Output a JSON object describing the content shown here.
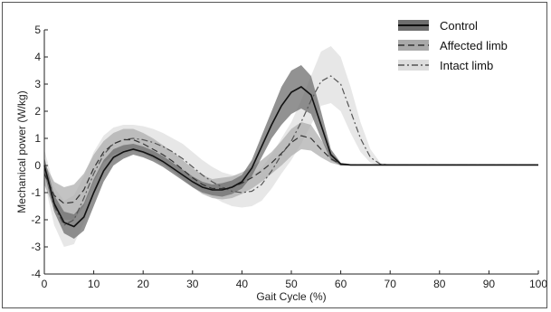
{
  "chart_data": {
    "type": "line",
    "title": "",
    "xlabel": "Gait Cycle (%)",
    "ylabel": "Mechanical power (W/kg)",
    "xlim": [
      0,
      100
    ],
    "ylim": [
      -4,
      5
    ],
    "xticks": [
      "0",
      "10",
      "20",
      "30",
      "40",
      "50",
      "60",
      "70",
      "80",
      "90",
      "100"
    ],
    "yticks": [
      "-4",
      "-3",
      "-2",
      "-1",
      "0",
      "1",
      "2",
      "3",
      "4",
      "5"
    ],
    "legend_position": "top-right",
    "series": [
      {
        "name": "Control",
        "line_style": "solid",
        "color": "#111111",
        "band_color": "#6e6e6e",
        "x": [
          0,
          2,
          4,
          6,
          8,
          10,
          12,
          14,
          16,
          18,
          20,
          22,
          24,
          26,
          28,
          30,
          32,
          34,
          36,
          38,
          40,
          42,
          44,
          46,
          48,
          50,
          52,
          54,
          56,
          58,
          60,
          62,
          65,
          70,
          80,
          90,
          100
        ],
        "y": [
          0.0,
          -1.4,
          -2.1,
          -2.25,
          -1.9,
          -1.0,
          -0.2,
          0.3,
          0.5,
          0.6,
          0.5,
          0.35,
          0.15,
          -0.1,
          -0.35,
          -0.6,
          -0.8,
          -0.9,
          -0.9,
          -0.8,
          -0.6,
          -0.1,
          0.7,
          1.5,
          2.2,
          2.7,
          2.9,
          2.6,
          1.5,
          0.4,
          0.05,
          0.02,
          0.02,
          0.02,
          0.02,
          0.02,
          0.02
        ],
        "band_low": [
          -0.3,
          -1.7,
          -2.5,
          -2.7,
          -2.4,
          -1.5,
          -0.6,
          0.0,
          0.25,
          0.4,
          0.3,
          0.15,
          -0.05,
          -0.3,
          -0.55,
          -0.8,
          -1.0,
          -1.1,
          -1.15,
          -1.05,
          -0.85,
          -0.4,
          0.3,
          1.0,
          1.5,
          1.9,
          2.1,
          1.9,
          1.0,
          0.2,
          0.0,
          0.0,
          0.0,
          0.0,
          0.0,
          0.0,
          0.0
        ],
        "band_high": [
          0.3,
          -1.1,
          -1.7,
          -1.8,
          -1.4,
          -0.5,
          0.2,
          0.6,
          0.75,
          0.8,
          0.7,
          0.55,
          0.35,
          0.1,
          -0.15,
          -0.4,
          -0.6,
          -0.7,
          -0.65,
          -0.55,
          -0.35,
          0.2,
          1.1,
          2.0,
          2.9,
          3.5,
          3.7,
          3.3,
          2.0,
          0.6,
          0.1,
          0.05,
          0.05,
          0.05,
          0.05,
          0.05,
          0.05
        ]
      },
      {
        "name": "Affected limb",
        "line_style": "dashed",
        "color": "#333333",
        "band_color": "#a9a9a9",
        "x": [
          0,
          2,
          4,
          6,
          8,
          10,
          12,
          14,
          16,
          18,
          20,
          22,
          24,
          26,
          28,
          30,
          32,
          34,
          36,
          38,
          40,
          42,
          44,
          46,
          48,
          50,
          52,
          54,
          56,
          58,
          60,
          62,
          65,
          70,
          80,
          90,
          100
        ],
        "y": [
          -0.3,
          -1.1,
          -1.4,
          -1.35,
          -0.9,
          -0.1,
          0.5,
          0.8,
          0.95,
          0.95,
          0.8,
          0.6,
          0.4,
          0.15,
          -0.15,
          -0.45,
          -0.7,
          -0.85,
          -0.85,
          -0.8,
          -0.65,
          -0.45,
          -0.2,
          0.1,
          0.45,
          0.85,
          1.1,
          1.0,
          0.6,
          0.25,
          0.05,
          0.02,
          0.02,
          0.02,
          0.02,
          0.02,
          0.02
        ],
        "band_low": [
          -0.7,
          -1.6,
          -2.0,
          -2.0,
          -1.5,
          -0.6,
          0.1,
          0.4,
          0.55,
          0.55,
          0.45,
          0.25,
          0.05,
          -0.2,
          -0.5,
          -0.8,
          -1.05,
          -1.2,
          -1.25,
          -1.2,
          -1.05,
          -0.85,
          -0.6,
          -0.3,
          0.0,
          0.35,
          0.6,
          0.55,
          0.3,
          0.1,
          0.0,
          0.0,
          0.0,
          0.0,
          0.0,
          0.0,
          0.0
        ],
        "band_high": [
          0.1,
          -0.6,
          -0.8,
          -0.7,
          -0.3,
          0.4,
          0.9,
          1.2,
          1.35,
          1.35,
          1.2,
          1.0,
          0.75,
          0.5,
          0.2,
          -0.1,
          -0.35,
          -0.5,
          -0.45,
          -0.4,
          -0.25,
          -0.05,
          0.2,
          0.5,
          0.9,
          1.35,
          1.6,
          1.5,
          0.95,
          0.45,
          0.1,
          0.05,
          0.05,
          0.05,
          0.05,
          0.05,
          0.05
        ]
      },
      {
        "name": "Intact limb",
        "line_style": "dashdot",
        "color": "#555555",
        "band_color": "#dddddd",
        "x": [
          0,
          2,
          4,
          6,
          8,
          10,
          12,
          14,
          16,
          18,
          20,
          22,
          24,
          26,
          28,
          30,
          32,
          34,
          36,
          38,
          40,
          42,
          44,
          46,
          48,
          50,
          52,
          54,
          56,
          58,
          60,
          62,
          64,
          66,
          68,
          70,
          80,
          90,
          100
        ],
        "y": [
          0.0,
          -1.5,
          -2.2,
          -2.0,
          -1.2,
          -0.3,
          0.4,
          0.8,
          0.95,
          1.0,
          0.95,
          0.85,
          0.7,
          0.5,
          0.25,
          -0.05,
          -0.35,
          -0.6,
          -0.8,
          -0.95,
          -1.0,
          -0.95,
          -0.7,
          -0.2,
          0.4,
          0.9,
          1.6,
          2.4,
          3.1,
          3.3,
          3.0,
          2.0,
          1.0,
          0.3,
          0.05,
          0.02,
          0.02,
          0.02,
          0.02
        ],
        "band_low": [
          -0.6,
          -2.2,
          -3.0,
          -2.9,
          -2.1,
          -1.1,
          -0.3,
          0.2,
          0.4,
          0.5,
          0.45,
          0.35,
          0.2,
          0.0,
          -0.3,
          -0.6,
          -0.9,
          -1.15,
          -1.35,
          -1.5,
          -1.55,
          -1.5,
          -1.3,
          -0.85,
          -0.3,
          0.2,
          0.8,
          1.5,
          2.2,
          2.3,
          2.0,
          1.2,
          0.5,
          0.1,
          0.0,
          0.0,
          0.0,
          0.0,
          0.0
        ],
        "band_high": [
          0.6,
          -0.8,
          -1.3,
          -1.1,
          -0.4,
          0.5,
          1.1,
          1.4,
          1.5,
          1.5,
          1.45,
          1.35,
          1.2,
          1.0,
          0.8,
          0.5,
          0.2,
          -0.05,
          -0.25,
          -0.35,
          -0.4,
          -0.35,
          -0.1,
          0.4,
          1.0,
          1.6,
          2.4,
          3.3,
          4.2,
          4.4,
          4.0,
          2.9,
          1.6,
          0.6,
          0.1,
          0.05,
          0.05,
          0.05,
          0.05
        ]
      }
    ]
  }
}
